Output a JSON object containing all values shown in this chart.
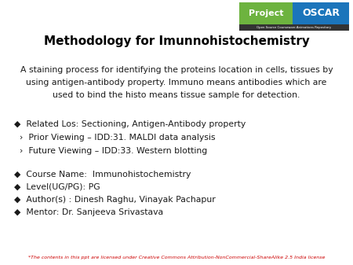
{
  "title": "Methodology for Imunnohistochemistry",
  "background_color": "#ffffff",
  "body_text": "A staining process for identifying the proteins location in cells, tissues by\nusing antigen-antibody property. Immuno means antibodies which are\nused to bind the histo means tissue sample for detection.",
  "bullet_items": [
    "◆  Related Los: Sectioning, Antigen-Antibody property",
    "  ›  Prior Viewing – IDD:31. MALDI data analysis",
    "  ›  Future Viewing – IDD:33. Western blotting"
  ],
  "info_items": [
    "◆  Course Name:  Immunohistochemistry",
    "◆  Level(UG/PG): PG",
    "◆  Author(s) : Dinesh Raghu, Vinayak Pachapur",
    "◆  Mentor: Dr. Sanjeeva Srivastava"
  ],
  "footer": "*The contents in this ppt are licensed under Creative Commons Attribution-NonCommercial-ShareAlike 2.5 India license",
  "project_label": "Project",
  "oscar_label": "OSCAR",
  "sub_label": "Open Source Courseware Animations Repository",
  "project_bg": "#6db33f",
  "oscar_bg": "#1b75bb",
  "sub_bg": "#333333",
  "title_fontsize": 11,
  "body_fontsize": 7.8,
  "bullet_fontsize": 7.8,
  "info_fontsize": 7.8,
  "footer_fontsize": 4.5,
  "logo_project_fontsize": 8,
  "logo_oscar_fontsize": 9,
  "logo_sub_fontsize": 2.8
}
